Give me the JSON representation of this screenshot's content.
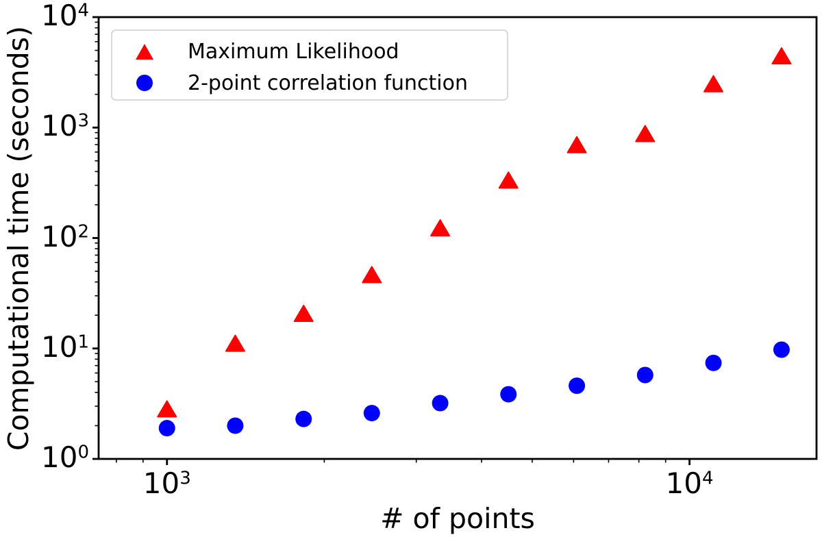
{
  "figure": {
    "background": "#ffffff",
    "text_color": "#000000",
    "axis_color": "#000000",
    "legend_border_color": "#d9d9d9"
  },
  "chart_data": {
    "type": "scatter",
    "title": "",
    "xlabel": "# of points",
    "ylabel": "Computational time (seconds)",
    "xscale": "log",
    "yscale": "log",
    "xlim": [
      740,
      17500
    ],
    "ylim": [
      1,
      10000
    ],
    "grid": false,
    "minor_ticks": true,
    "x_major_ticks": [
      1000,
      10000
    ],
    "y_major_ticks": [
      1,
      10,
      100,
      1000,
      10000
    ],
    "x": [
      1000,
      1351,
      1826,
      2466,
      3333,
      4503,
      6086,
      8223,
      11112,
      15000
    ],
    "series": [
      {
        "name": "Maximum Likelihood",
        "marker": "triangle",
        "color": "#ff0000",
        "values": [
          2.8,
          11,
          20.5,
          46,
          122,
          330,
          690,
          870,
          2460,
          4400
        ]
      },
      {
        "name": "2-point correlation function",
        "marker": "circle",
        "color": "#0000ff",
        "values": [
          1.9,
          2.0,
          2.3,
          2.6,
          3.2,
          3.85,
          4.6,
          5.75,
          7.4,
          9.75
        ]
      }
    ],
    "legend_position": "upper left"
  }
}
